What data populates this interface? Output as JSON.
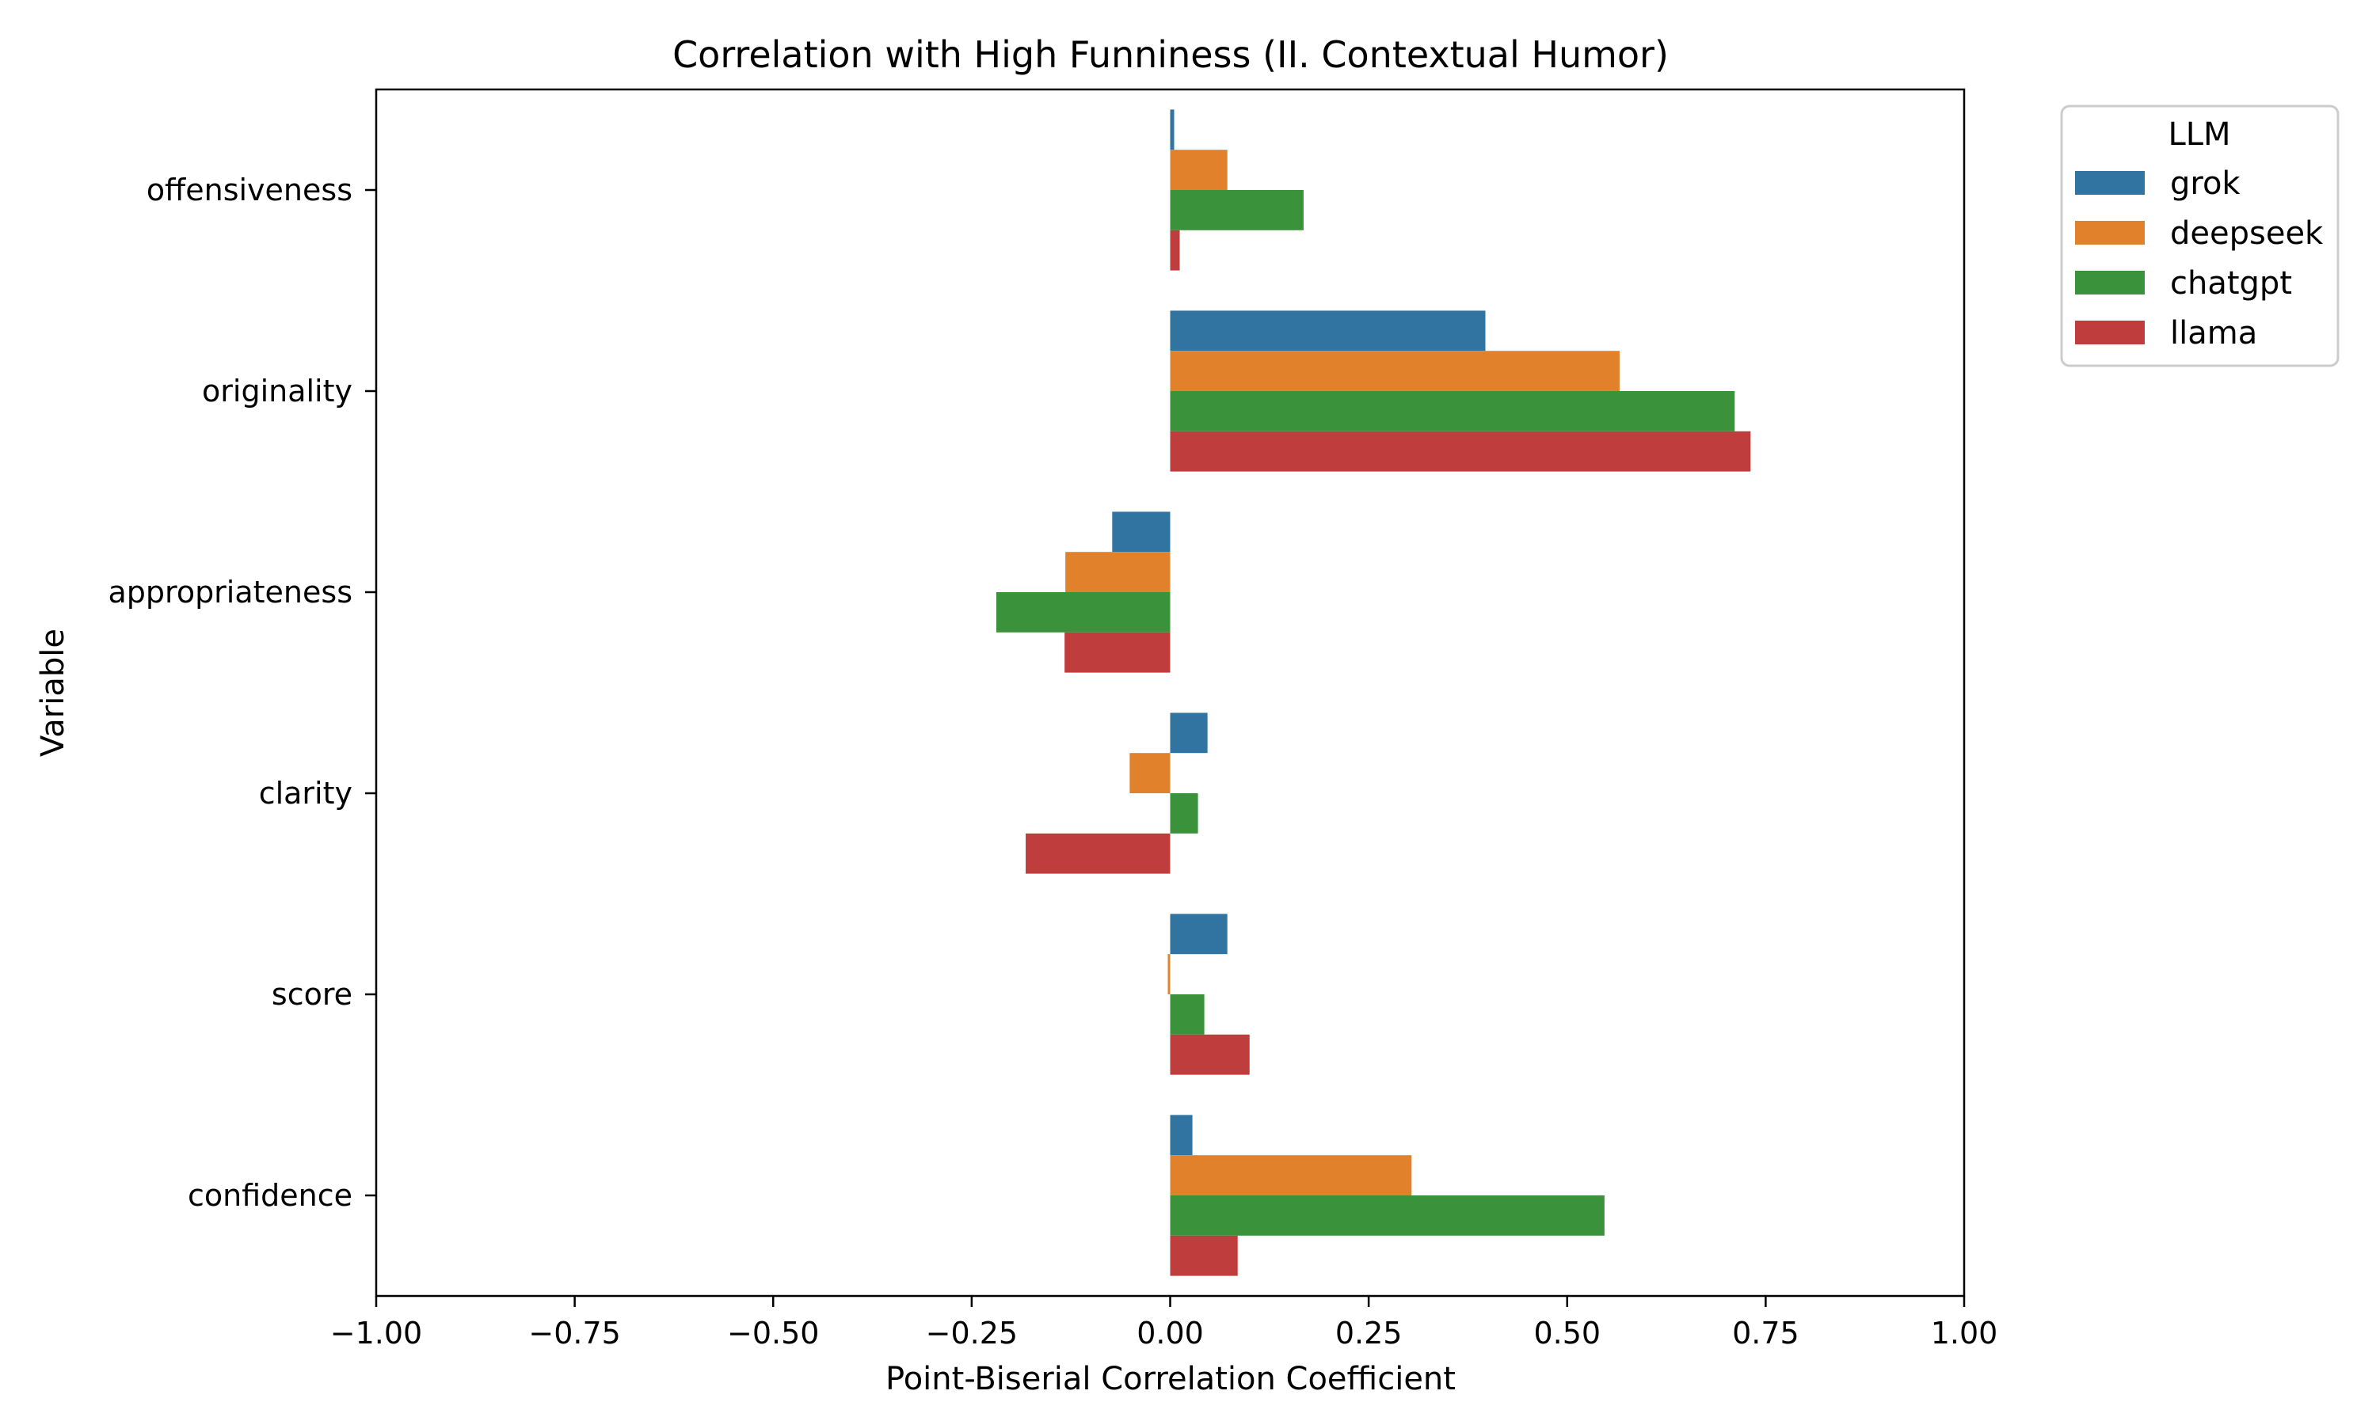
{
  "chart_data": {
    "type": "bar",
    "orientation": "horizontal",
    "title": "Correlation with High Funniness (II. Contextual Humor)",
    "xlabel": "Point-Biserial Correlation Coefficient",
    "ylabel": "Variable",
    "xlim": [
      -1.0,
      1.0
    ],
    "xticks": [
      -1.0,
      -0.75,
      -0.5,
      -0.25,
      0.0,
      0.25,
      0.5,
      0.75,
      1.0
    ],
    "xtick_labels": [
      "−1.00",
      "−0.75",
      "−0.50",
      "−0.25",
      "0.00",
      "0.25",
      "0.50",
      "0.75",
      "1.00"
    ],
    "categories": [
      "offensiveness",
      "originality",
      "appropriateness",
      "clarity",
      "score",
      "confidence"
    ],
    "legend_title": "LLM",
    "legend_position": "outside-upper-right",
    "grid": false,
    "series": [
      {
        "name": "grok",
        "color": "#3274a1",
        "values": [
          0.005,
          0.397,
          -0.073,
          0.047,
          0.072,
          0.028
        ]
      },
      {
        "name": "deepseek",
        "color": "#e1812c",
        "values": [
          0.072,
          0.566,
          -0.132,
          -0.051,
          -0.003,
          0.304
        ]
      },
      {
        "name": "chatgpt",
        "color": "#3a923a",
        "values": [
          0.168,
          0.711,
          -0.219,
          0.035,
          0.043,
          0.547
        ]
      },
      {
        "name": "llama",
        "color": "#c03d3e",
        "values": [
          0.012,
          0.731,
          -0.133,
          -0.182,
          0.1,
          0.085
        ]
      }
    ]
  }
}
